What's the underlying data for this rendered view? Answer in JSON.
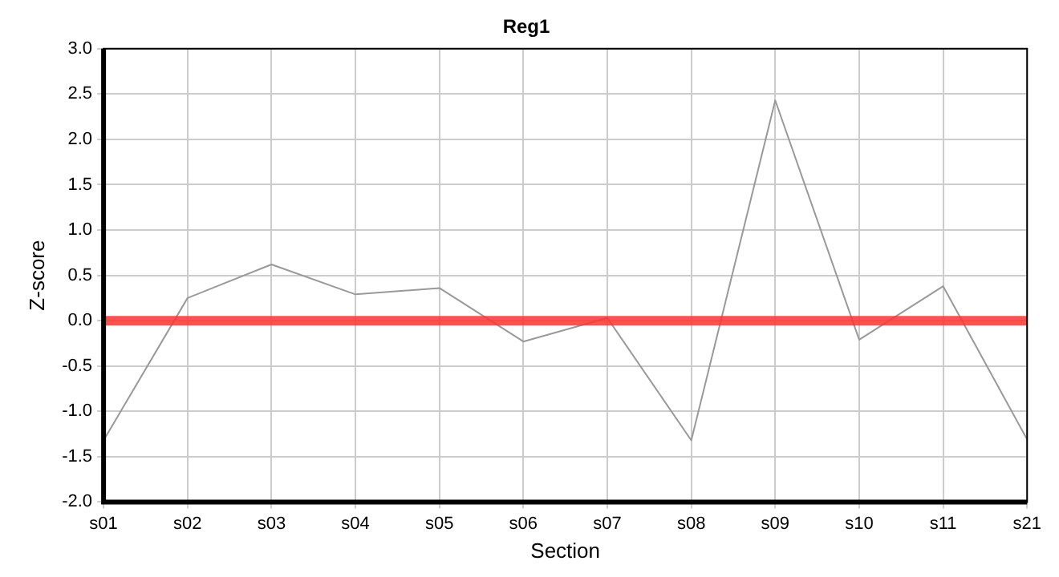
{
  "chart_data": {
    "type": "line",
    "title": "Reg1",
    "xlabel": "Section",
    "ylabel": "Z-score",
    "categories": [
      "s01",
      "s02",
      "s03",
      "s04",
      "s05",
      "s06",
      "s07",
      "s08",
      "s09",
      "s10",
      "s11",
      "s21"
    ],
    "series": [
      {
        "color": "#999999",
        "values": [
          -1.32,
          0.25,
          0.62,
          0.29,
          0.36,
          -0.23,
          0.03,
          -1.32,
          2.43,
          -0.21,
          0.38,
          -1.31
        ]
      }
    ],
    "ylim": [
      -2,
      3
    ],
    "yticks": [
      {
        "value": -2,
        "label": "-2.0"
      },
      {
        "value": -1.5,
        "label": "-1.5"
      },
      {
        "value": -1,
        "label": "-1.0"
      },
      {
        "value": -0.5,
        "label": "-0.5"
      },
      {
        "value": 0,
        "label": "0.0"
      },
      {
        "value": 0.5,
        "label": "0.5"
      },
      {
        "value": 1,
        "label": "1.0"
      },
      {
        "value": 1.5,
        "label": "1.5"
      },
      {
        "value": 2,
        "label": "2.0"
      },
      {
        "value": 2.5,
        "label": "2.5"
      },
      {
        "value": 3,
        "label": "3.0"
      }
    ],
    "ref_lines": [
      {
        "axis": "y",
        "value": 0,
        "color": "#ff3333"
      }
    ],
    "grid": true,
    "legend": false,
    "marker": "none",
    "line_style": "solid"
  }
}
